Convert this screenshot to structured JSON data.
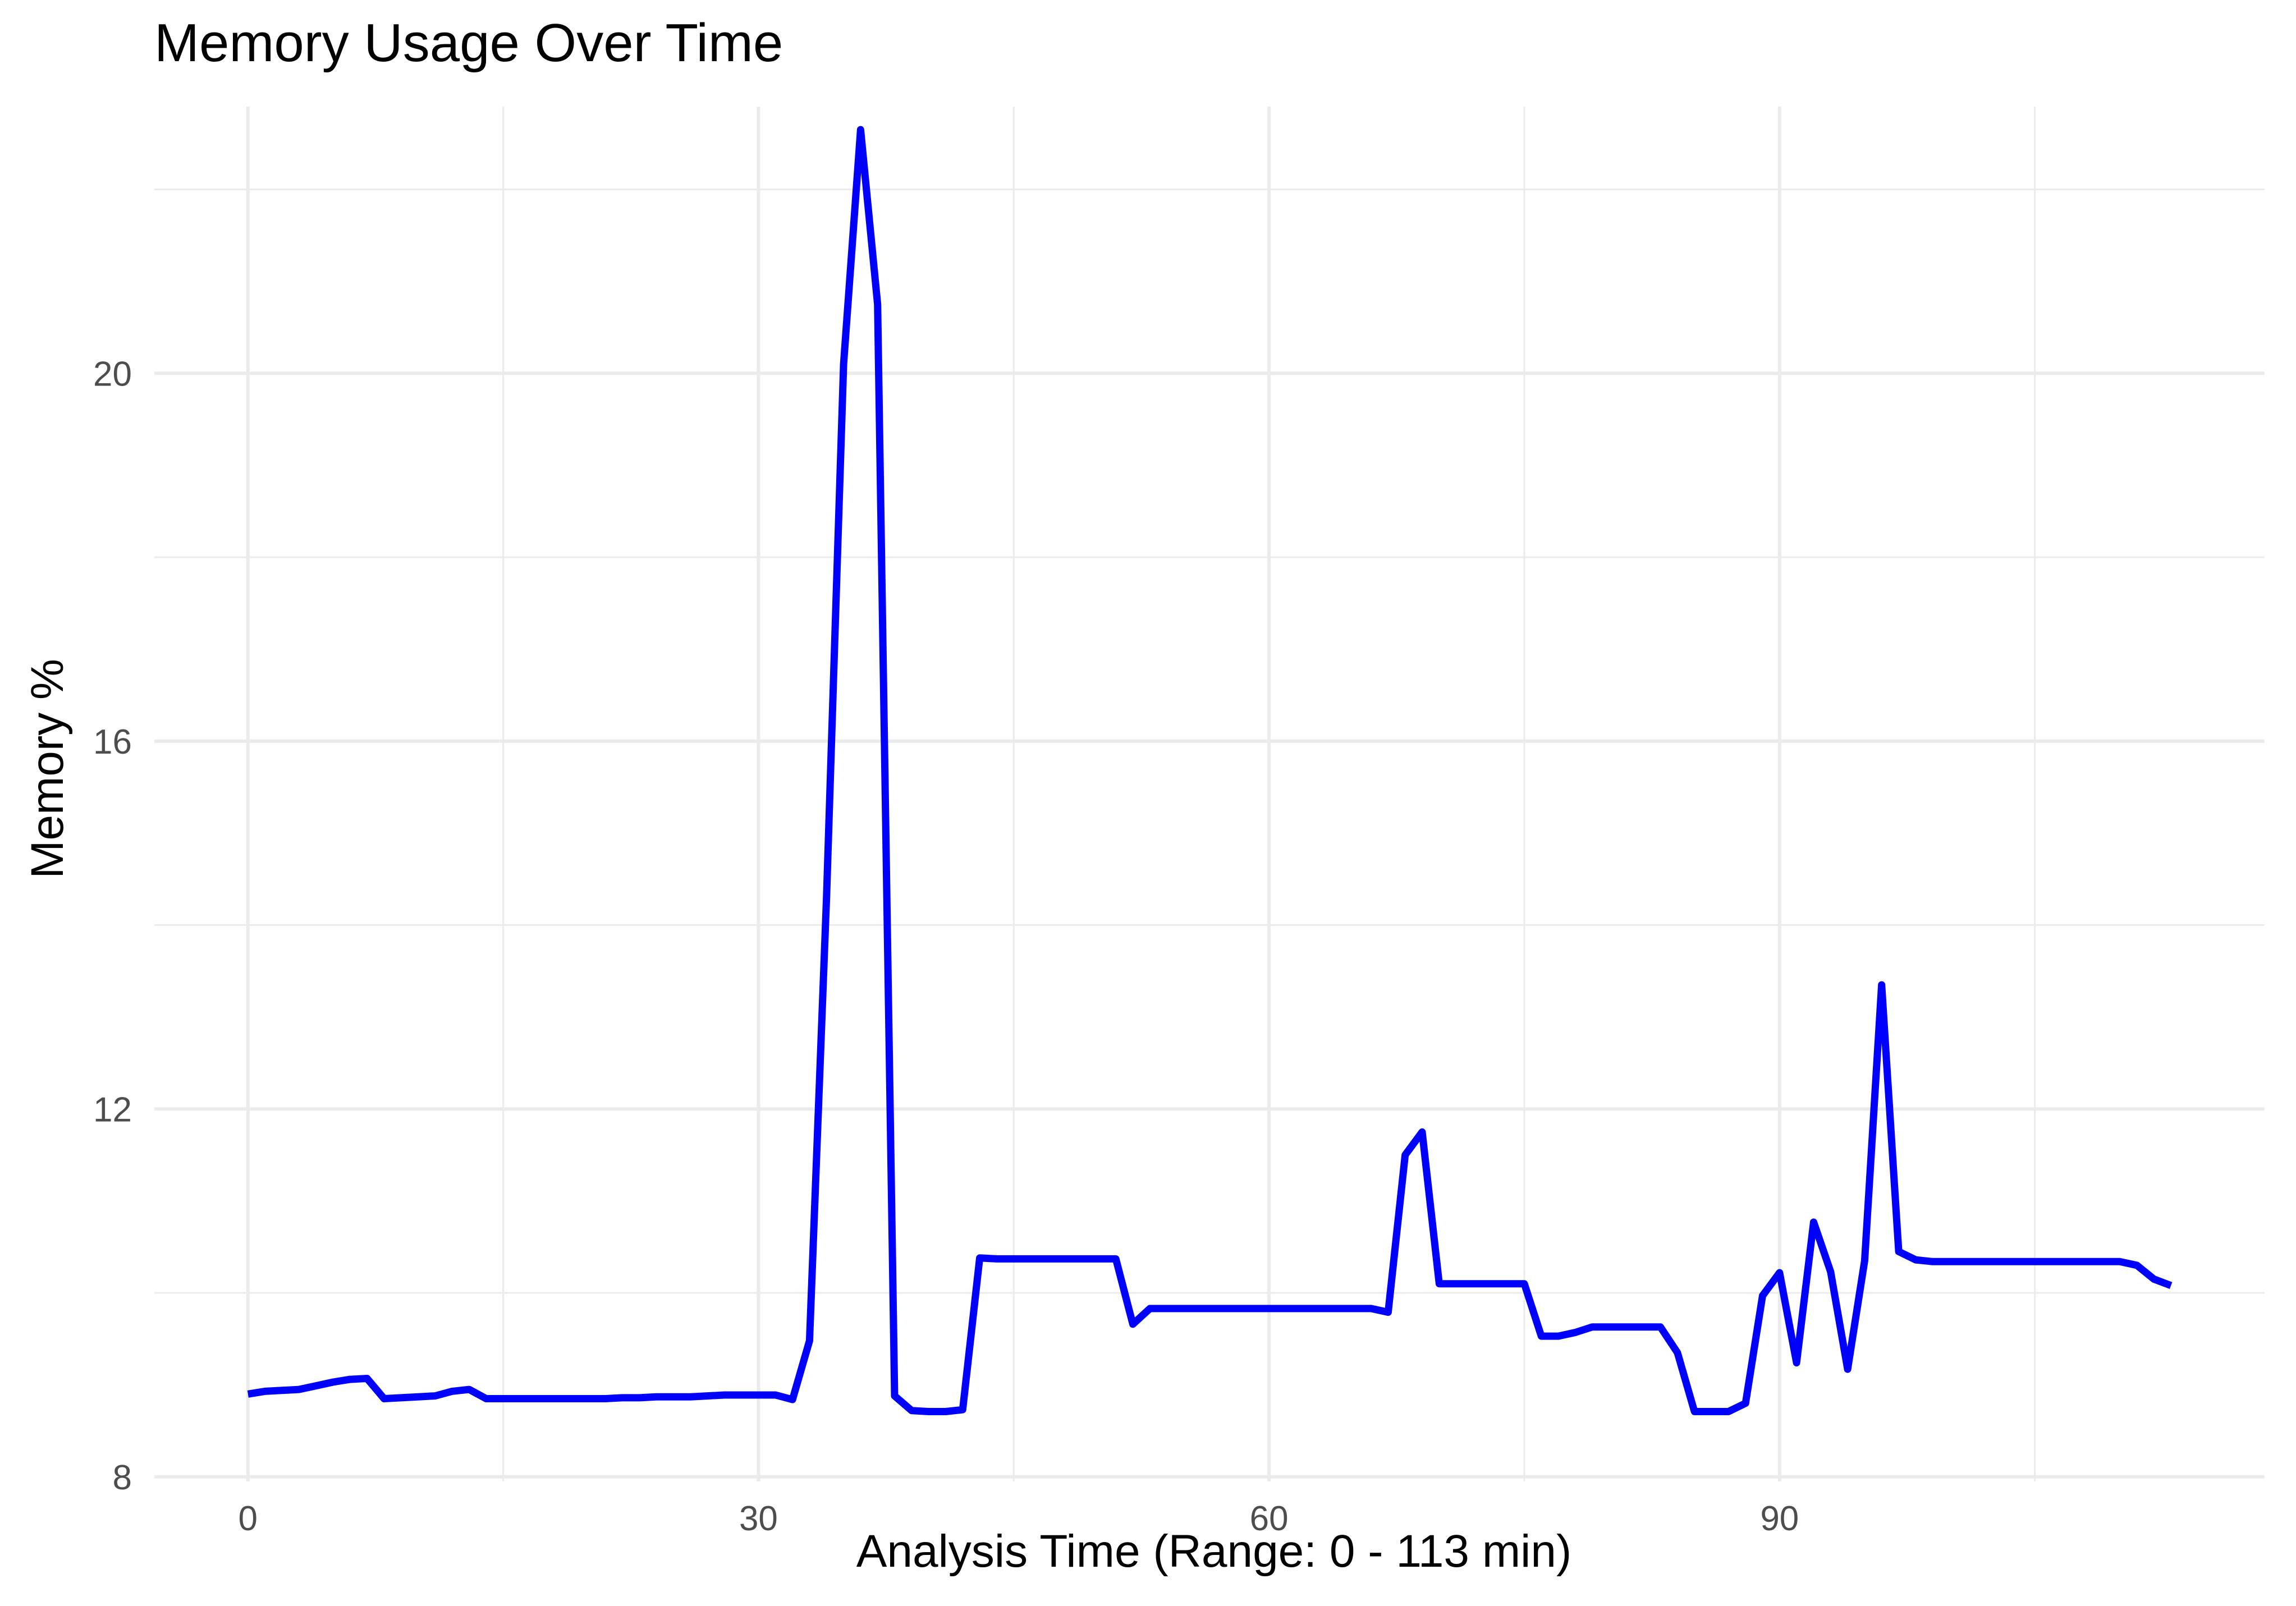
{
  "chart_data": {
    "type": "line",
    "title": "Memory Usage Over Time",
    "xlabel": "Analysis Time (Range: 0 - 113  min)",
    "ylabel": "Memory %",
    "xlim": [
      -5.5,
      118.5
    ],
    "ylim": [
      7.95,
      22.9
    ],
    "x_ticks": [
      0,
      30,
      60,
      90
    ],
    "y_ticks": [
      8,
      12,
      16,
      20
    ],
    "grid": true,
    "legend": "none",
    "line_color": "#0000ff",
    "series": [
      {
        "x": [
          0,
          1,
          2,
          3,
          4,
          5,
          6,
          7,
          8,
          9,
          10,
          11,
          12,
          13,
          14,
          15,
          16,
          17,
          18,
          19,
          20,
          21,
          22,
          23,
          24,
          25,
          26,
          27,
          28,
          29,
          30,
          31,
          32,
          33,
          34,
          35,
          36,
          37,
          38,
          39,
          40,
          41,
          42,
          43,
          44,
          45,
          46,
          47,
          48,
          49,
          50,
          51,
          52,
          53,
          54,
          55,
          56,
          57,
          58,
          59,
          60,
          61,
          62,
          63,
          64,
          65,
          66,
          67,
          68,
          69,
          70,
          71,
          72,
          73,
          74,
          75,
          76,
          77,
          78,
          79,
          80,
          81,
          82,
          83,
          84,
          85,
          86,
          87,
          88,
          89,
          90,
          91,
          92,
          93,
          94,
          95,
          96,
          97,
          98,
          99,
          100,
          101,
          102,
          103,
          104,
          105,
          106,
          107,
          108,
          109,
          110,
          111,
          112,
          113
        ],
        "values": [
          8.9,
          8.93,
          8.94,
          8.95,
          8.99,
          9.03,
          9.06,
          9.07,
          8.85,
          8.86,
          8.87,
          8.88,
          8.93,
          8.95,
          8.85,
          8.85,
          8.85,
          8.85,
          8.85,
          8.85,
          8.85,
          8.85,
          8.86,
          8.86,
          8.87,
          8.87,
          8.87,
          8.88,
          8.89,
          8.89,
          8.89,
          8.89,
          8.84,
          9.48,
          14.3,
          20.1,
          22.65,
          20.75,
          8.88,
          8.72,
          8.71,
          8.71,
          8.73,
          10.38,
          10.37,
          10.37,
          10.37,
          10.37,
          10.37,
          10.37,
          10.37,
          10.37,
          9.66,
          9.83,
          9.83,
          9.83,
          9.83,
          9.83,
          9.83,
          9.83,
          9.83,
          9.83,
          9.83,
          9.83,
          9.83,
          9.83,
          9.83,
          9.79,
          11.5,
          11.75,
          10.1,
          10.1,
          10.1,
          10.1,
          10.1,
          10.1,
          9.53,
          9.53,
          9.57,
          9.63,
          9.63,
          9.63,
          9.63,
          9.63,
          9.35,
          8.71,
          8.71,
          8.71,
          8.8,
          9.97,
          10.22,
          9.24,
          10.77,
          10.23,
          9.17,
          10.35,
          13.35,
          10.45,
          10.36,
          10.34,
          10.34,
          10.34,
          10.34,
          10.34,
          10.34,
          10.34,
          10.34,
          10.34,
          10.34,
          10.34,
          10.34,
          10.3,
          10.15,
          10.08
        ]
      }
    ]
  }
}
